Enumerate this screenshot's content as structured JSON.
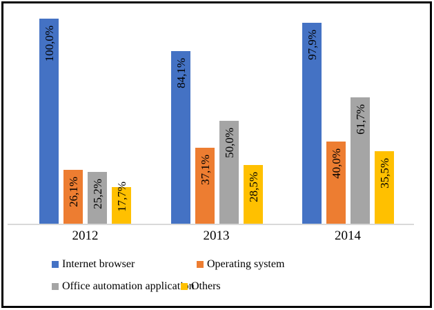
{
  "chart_data": {
    "type": "bar",
    "categories": [
      "2012",
      "2013",
      "2014"
    ],
    "series": [
      {
        "name": "Internet browser",
        "color": "#4472C4",
        "values": [
          100.0,
          84.1,
          97.9
        ],
        "labels": [
          "100,0%",
          "84,1%",
          "97,9%"
        ]
      },
      {
        "name": "Operating system",
        "color": "#ED7D31",
        "values": [
          26.1,
          37.1,
          40.0
        ],
        "labels": [
          "26,1%",
          "37,1%",
          "40,0%"
        ]
      },
      {
        "name": "Office automation application",
        "color": "#A5A5A5",
        "values": [
          25.2,
          50.0,
          61.7
        ],
        "labels": [
          "25,2%",
          "50,0%",
          "61,7%"
        ]
      },
      {
        "name": "Others",
        "color": "#FFC000",
        "values": [
          17.7,
          28.5,
          35.5
        ],
        "labels": [
          "17,7%",
          "28,5%",
          "35,5%"
        ]
      }
    ],
    "title": "",
    "xlabel": "",
    "ylabel": "",
    "ylim": [
      0,
      105
    ],
    "grid": false,
    "legend_position": "bottom",
    "label_rotation": -90,
    "decimal_separator": ",",
    "axis_line_color": "#D9D9D9",
    "text_color": "#000000"
  }
}
